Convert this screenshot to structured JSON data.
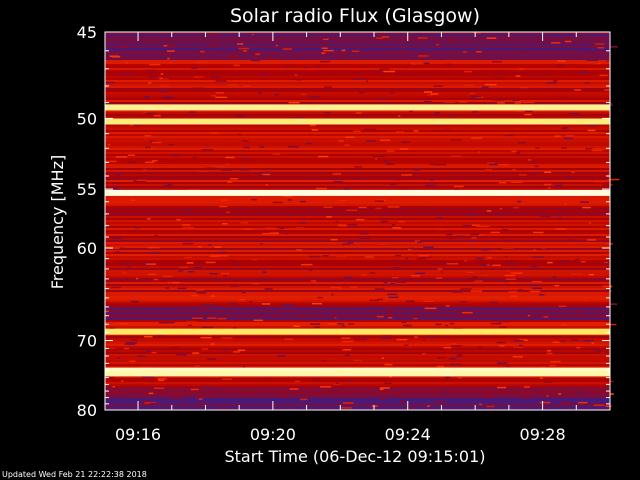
{
  "chart_data": {
    "type": "heatmap",
    "title": "Solar radio Flux (Glasgow)",
    "xlabel": "Start Time (06-Dec-12 09:15:01)",
    "ylabel": "Frequency [MHz]",
    "x_ticks": [
      "09:16",
      "09:20",
      "09:24",
      "09:28"
    ],
    "x_tick_minutes": [
      16,
      20,
      24,
      28
    ],
    "x_range_minutes": [
      15.02,
      30.0
    ],
    "y_ticks": [
      45,
      50,
      55,
      60,
      70,
      80
    ],
    "y_range": [
      45,
      80
    ],
    "y_scale": "reciprocal",
    "colormap": [
      "#000000",
      "#3b1d88",
      "#b00000",
      "#ff3000",
      "#ffd800",
      "#ffffe0"
    ],
    "bright_bands_mhz": [
      {
        "freq": 49.3,
        "intensity": 0.85
      },
      {
        "freq": 50.2,
        "intensity": 0.8
      },
      {
        "freq": 55.3,
        "intensity": 1.0
      },
      {
        "freq": 68.9,
        "intensity": 0.75
      },
      {
        "freq": 74.0,
        "intensity": 0.95
      },
      {
        "freq": 74.4,
        "intensity": 0.9
      }
    ],
    "dark_bands_mhz": [
      {
        "from": 45.0,
        "to": 46.5
      },
      {
        "from": 66.0,
        "to": 67.5
      },
      {
        "from": 76.5,
        "to": 80.0
      }
    ]
  },
  "footer": {
    "updated": "Updated Wed Feb 21 22:22:38 2018"
  }
}
